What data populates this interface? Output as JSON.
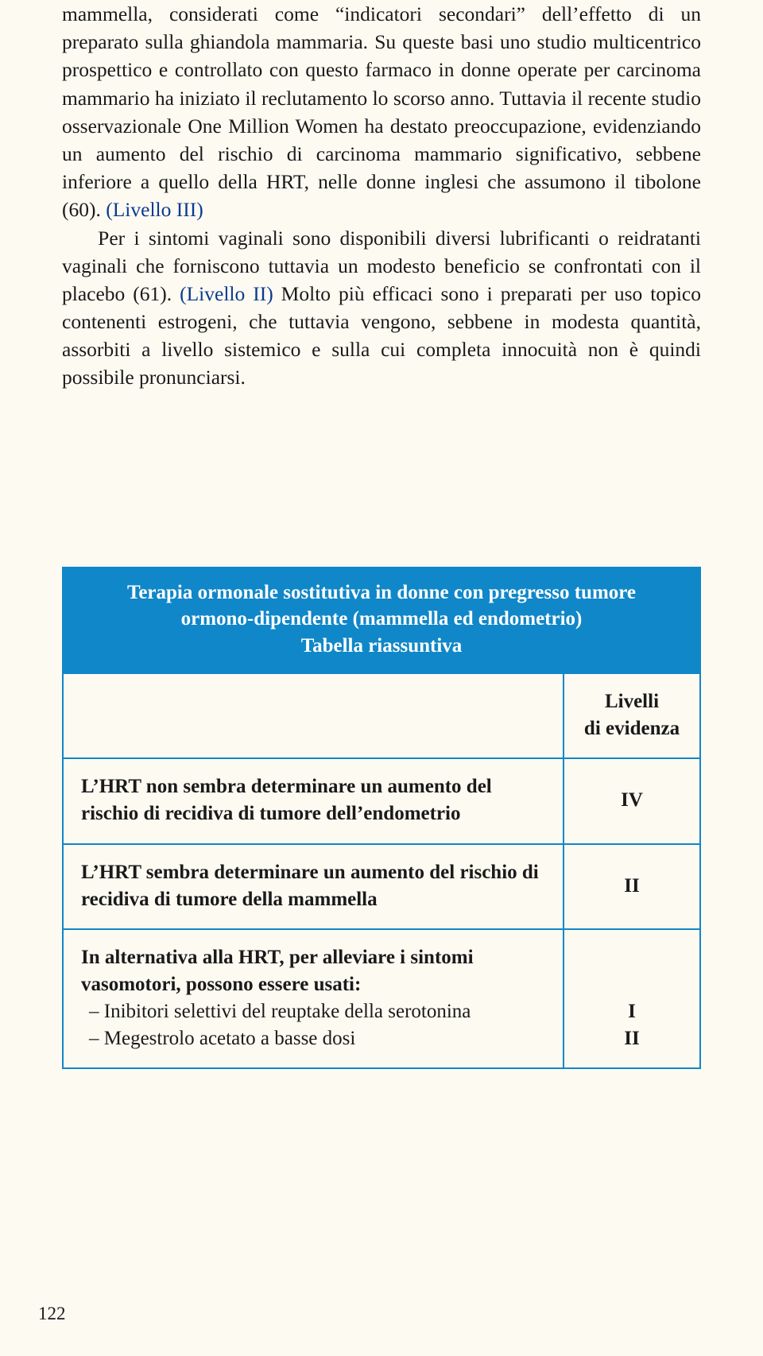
{
  "paragraph": {
    "seg1": "mammella, considerati come “indicatori secondari” dell’effetto di un preparato sulla ghiandola mammaria. Su queste basi uno studio multicentrico prospettico e controllato con questo farmaco in donne operate per carcinoma mammario ha iniziato il reclutamento lo scorso anno. Tuttavia il recente studio osservazionale One Million Women ha destato preoccupazione, evidenziando un aumento del rischio di carcinoma mammario significativo, sebbene inferiore a quello della HRT, nelle donne inglesi che assumono il tibolone (60). ",
    "lvl1": "(Livello III)",
    "seg2": "Per i sintomi vaginali sono disponibili diversi lubrificanti o reidratanti vaginali che forniscono tuttavia un modesto beneficio se confrontati con il placebo (61). ",
    "lvl2": "(Livello II)",
    "seg3": " Molto più efficaci sono i preparati per uso topico contenenti estrogeni, che tuttavia vengono, sebbene in modesta quantità, assorbiti a livello sistemico e sulla cui completa innocuità non è quindi possibile pronunciarsi."
  },
  "table": {
    "title_l1": "Terapia ormonale sostitutiva in donne con pregresso tumore",
    "title_l2": "ormono-dipendente (mammella ed endometrio)",
    "title_l3": "Tabella riassuntiva",
    "col_header_l1": "Livelli",
    "col_header_l2": "di evidenza",
    "rows": [
      {
        "text": "L’HRT non sembra determinare un aumento del rischio di recidiva di tumore dell’endometrio",
        "level": "IV"
      },
      {
        "text": "L’HRT sembra determinare un aumento del rischio di recidiva di tumore della mammella",
        "level": "II"
      }
    ],
    "row3": {
      "intro": "In alternativa alla HRT, per alleviare i sintomi vasomotori, possono essere usati:",
      "b1": "– Inibitori selettivi del reuptake della serotonina",
      "b2": "– Megestrolo acetato a basse dosi",
      "lv1": "I",
      "lv2": "II"
    }
  },
  "page_number": "122",
  "colors": {
    "table_border": "#1087c8",
    "header_bg": "#1087c8",
    "header_fg": "#ffffff",
    "body_bg": "#fdfaf2",
    "level_text": "#0a3b8f"
  }
}
